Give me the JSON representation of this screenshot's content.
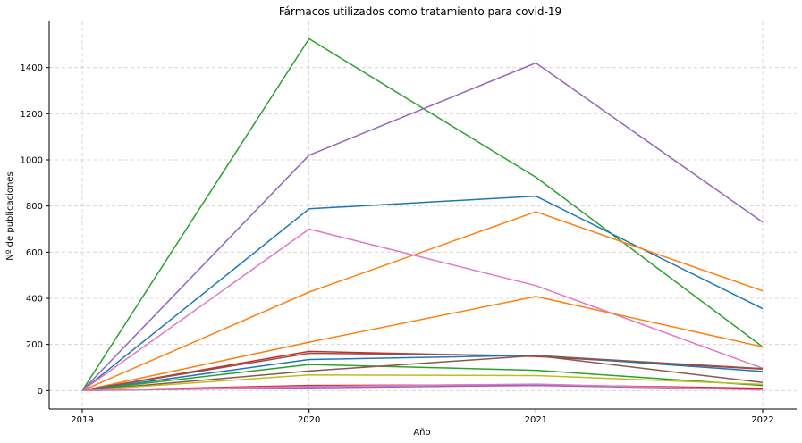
{
  "chart_data": {
    "type": "line",
    "title": "Fármacos utilizados como tratamiento para covid-19",
    "xlabel": "Año",
    "ylabel": "Nº de publicaciones",
    "x": [
      "2019",
      "2020",
      "2021",
      "2022"
    ],
    "ylim": [
      -80,
      1600
    ],
    "yticks": [
      0,
      200,
      400,
      600,
      800,
      1000,
      1200,
      1400
    ],
    "grid": true,
    "series": [
      {
        "color": "#2ca02c",
        "values": [
          0,
          1525,
          925,
          190
        ]
      },
      {
        "color": "#9467bd",
        "values": [
          0,
          1020,
          1420,
          730
        ]
      },
      {
        "color": "#1f77b4",
        "values": [
          0,
          788,
          843,
          355
        ]
      },
      {
        "color": "#ff7f0e",
        "values": [
          0,
          427,
          775,
          432
        ]
      },
      {
        "color": "#e377c2",
        "values": [
          0,
          700,
          455,
          97
        ]
      },
      {
        "color": "#ff7f0e",
        "values": [
          0,
          210,
          408,
          190
        ]
      },
      {
        "color": "#d62728",
        "values": [
          0,
          170,
          148,
          93
        ]
      },
      {
        "color": "#8c564b",
        "values": [
          0,
          162,
          152,
          35
        ]
      },
      {
        "color": "#1f77b4",
        "values": [
          0,
          135,
          153,
          83
        ]
      },
      {
        "color": "#2ca02c",
        "values": [
          0,
          113,
          88,
          22
        ]
      },
      {
        "color": "#8c564b",
        "values": [
          0,
          85,
          152,
          95
        ]
      },
      {
        "color": "#bcbd22",
        "values": [
          0,
          68,
          65,
          27
        ]
      },
      {
        "color": "#d62728",
        "values": [
          0,
          22,
          25,
          10
        ]
      },
      {
        "color": "#9467bd",
        "values": [
          0,
          12,
          22,
          5
        ]
      },
      {
        "color": "#e377c2",
        "values": [
          0,
          18,
          28,
          3
        ]
      }
    ]
  }
}
